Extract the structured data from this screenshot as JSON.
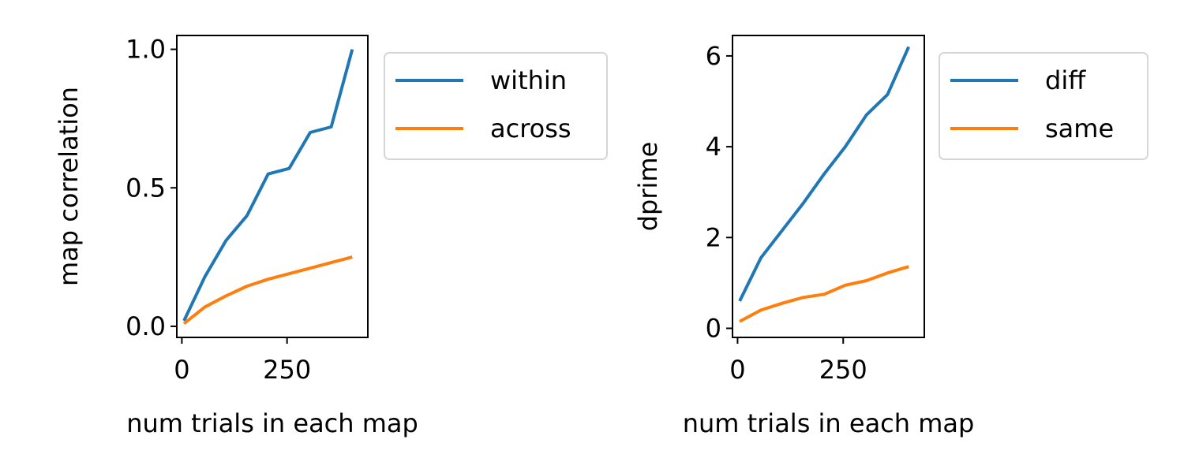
{
  "chart_data": [
    {
      "type": "line",
      "xlabel": "num trials in each map",
      "ylabel": "map correlation",
      "xlim": [
        -12,
        442
      ],
      "ylim": [
        -0.04,
        1.05
      ],
      "xticks": [
        0,
        250
      ],
      "yticks": [
        0.0,
        0.5,
        1.0
      ],
      "ytick_labels": [
        "0.0",
        "0.5",
        "1.0"
      ],
      "grid": false,
      "legend_placement": "outside upper right",
      "x": [
        5,
        55,
        105,
        155,
        205,
        255,
        305,
        355,
        405
      ],
      "series": [
        {
          "name": "within",
          "color": "#1f77b4",
          "values": [
            0.02,
            0.18,
            0.31,
            0.4,
            0.55,
            0.57,
            0.7,
            0.72,
            1.0
          ]
        },
        {
          "name": "across",
          "color": "#ff7f0e",
          "values": [
            0.01,
            0.07,
            0.11,
            0.145,
            0.17,
            0.19,
            0.21,
            0.23,
            0.25
          ]
        }
      ]
    },
    {
      "type": "line",
      "xlabel": "num trials in each map",
      "ylabel": "dprime",
      "xlim": [
        -12,
        442
      ],
      "ylim": [
        -0.2,
        6.45
      ],
      "xticks": [
        0,
        250
      ],
      "yticks": [
        0,
        2,
        4,
        6
      ],
      "ytick_labels": [
        "0",
        "2",
        "4",
        "6"
      ],
      "grid": false,
      "legend_placement": "outside upper right",
      "x": [
        5,
        55,
        105,
        155,
        205,
        255,
        305,
        355,
        405
      ],
      "series": [
        {
          "name": "diff",
          "color": "#1f77b4",
          "values": [
            0.6,
            1.55,
            2.15,
            2.75,
            3.4,
            4.0,
            4.7,
            5.15,
            6.2
          ]
        },
        {
          "name": "same",
          "color": "#ff7f0e",
          "values": [
            0.15,
            0.4,
            0.55,
            0.68,
            0.75,
            0.95,
            1.05,
            1.22,
            1.36
          ]
        }
      ]
    }
  ]
}
